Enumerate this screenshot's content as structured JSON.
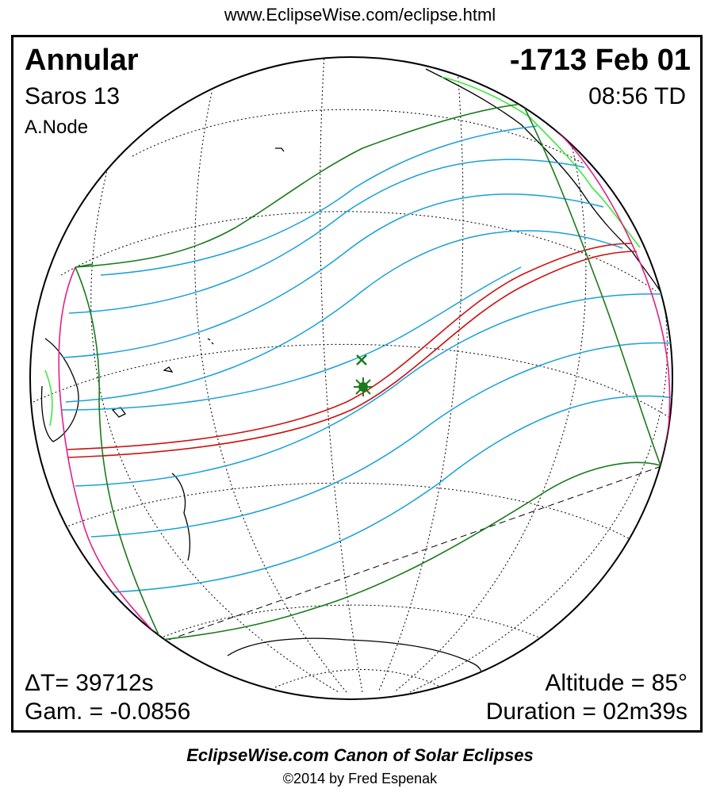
{
  "header_url": "www.EclipseWise.com/eclipse.html",
  "eclipse": {
    "type": "Annular",
    "date": "-1713 Feb 01",
    "saros": "Saros  13",
    "time": "08:56 TD",
    "node": "A.Node",
    "delta_t": "ΔT=  39712s",
    "gamma": "Gam. = -0.0856",
    "altitude": "Altitude = 85°",
    "duration": "Duration = 02m39s"
  },
  "footer": {
    "canon": "EclipseWise.com Canon of Solar Eclipses",
    "copyright": "©2014 by Fred Espenak"
  },
  "colors": {
    "central_path": "#cc1111",
    "penumbra_limits": "#1a7a1a",
    "magnitude_curves": "#1aa0d8",
    "rise_set_curves": "#e0208a",
    "coastline": "#000000",
    "continent_highlight": "#3ee83e",
    "marker": "#1a7a1a"
  },
  "markers": {
    "sub_solar_point": "x-mark-icon",
    "greatest_eclipse": "star-burst-icon"
  }
}
